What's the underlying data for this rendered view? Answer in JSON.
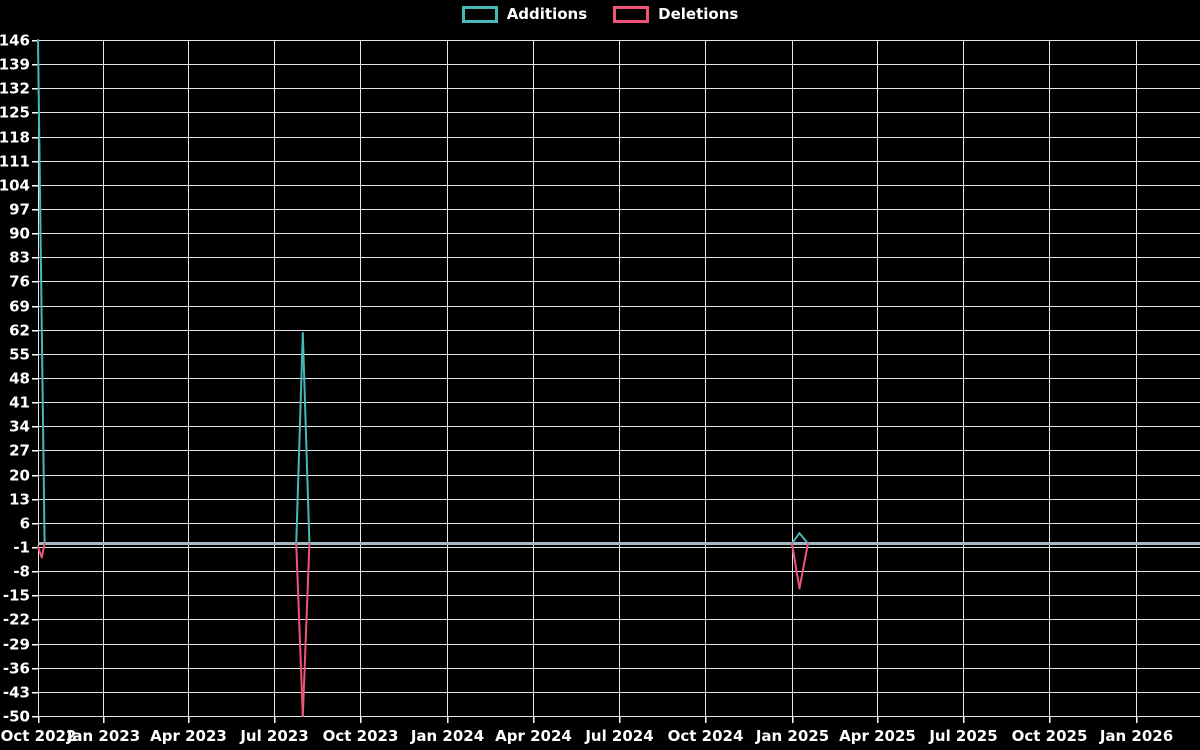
{
  "chart_data": {
    "type": "line",
    "title": "",
    "background": "#000000",
    "legend_position": "top-center",
    "grid": true,
    "colors": {
      "grid": "#e6e6e6",
      "axis_text": "#ffffff",
      "zero_baseline": "#a3b8c2",
      "additions": "#46b8ba",
      "deletions": "#ee5576"
    },
    "ylim": [
      -50,
      146
    ],
    "ytick_step": 7,
    "yticks": [
      146,
      139,
      132,
      125,
      118,
      111,
      104,
      97,
      90,
      83,
      76,
      69,
      62,
      55,
      48,
      41,
      34,
      27,
      20,
      13,
      6,
      -1,
      -8,
      -15,
      -22,
      -29,
      -36,
      -43,
      -50
    ],
    "x_domain": [
      "2022-10-24",
      "2026-03-10"
    ],
    "xticks": [
      {
        "label": "Oct 2022",
        "date": "2022-10-24"
      },
      {
        "label": "Jan 2023",
        "date": "2023-01-01"
      },
      {
        "label": "Apr 2023",
        "date": "2023-04-01"
      },
      {
        "label": "Jul 2023",
        "date": "2023-07-01"
      },
      {
        "label": "Oct 2023",
        "date": "2023-10-01"
      },
      {
        "label": "Jan 2024",
        "date": "2024-01-01"
      },
      {
        "label": "Apr 2024",
        "date": "2024-04-01"
      },
      {
        "label": "Jul 2024",
        "date": "2024-07-01"
      },
      {
        "label": "Oct 2024",
        "date": "2024-10-01"
      },
      {
        "label": "Jan 2025",
        "date": "2025-01-01"
      },
      {
        "label": "Apr 2025",
        "date": "2025-04-01"
      },
      {
        "label": "Jul 2025",
        "date": "2025-07-01"
      },
      {
        "label": "Oct 2025",
        "date": "2025-10-01"
      },
      {
        "label": "Jan 2026",
        "date": "2026-01-01"
      }
    ],
    "series": [
      {
        "name": "Additions",
        "color": "#46b8ba",
        "points": [
          [
            "2022-10-24",
            146
          ],
          [
            "2022-10-31",
            0
          ],
          [
            "2023-07-25",
            0
          ],
          [
            "2023-08-01",
            61
          ],
          [
            "2023-08-08",
            0
          ],
          [
            "2025-01-01",
            0
          ],
          [
            "2025-01-09",
            3
          ],
          [
            "2025-01-18",
            0
          ],
          [
            "2026-03-10",
            0
          ]
        ]
      },
      {
        "name": "Deletions",
        "color": "#ee5576",
        "points": [
          [
            "2022-10-24",
            -1
          ],
          [
            "2022-10-28",
            -4
          ],
          [
            "2022-10-31",
            0
          ],
          [
            "2023-07-25",
            0
          ],
          [
            "2023-08-01",
            -50
          ],
          [
            "2023-08-08",
            0
          ],
          [
            "2025-01-01",
            0
          ],
          [
            "2025-01-09",
            -13
          ],
          [
            "2025-01-18",
            0
          ],
          [
            "2026-03-10",
            0
          ]
        ]
      }
    ]
  }
}
